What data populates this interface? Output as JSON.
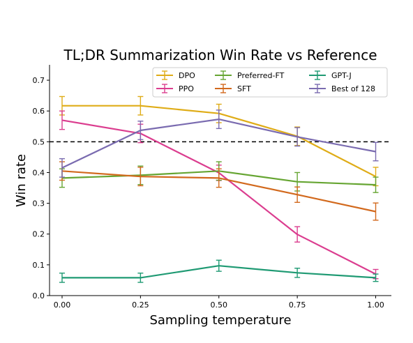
{
  "chart_data": {
    "type": "line",
    "title": "TL;DR Summarization Win Rate vs Reference",
    "xlabel": "Sampling temperature",
    "ylabel": "Win rate",
    "x": [
      0.0,
      0.25,
      0.5,
      0.75,
      1.0
    ],
    "x_tick_labels": [
      "0.00",
      "0.25",
      "0.50",
      "0.75",
      "1.00"
    ],
    "xlim": [
      -0.04,
      1.05
    ],
    "ylim": [
      0.0,
      0.75
    ],
    "y_ticks": [
      0.0,
      0.1,
      0.2,
      0.3,
      0.4,
      0.5,
      0.6,
      0.7
    ],
    "y_tick_labels": [
      "0.0",
      "0.1",
      "0.2",
      "0.3",
      "0.4",
      "0.5",
      "0.6",
      "0.7"
    ],
    "reference_line": {
      "y": 0.5,
      "style": "dashed",
      "color": "#000000"
    },
    "legend_position": "upper-right",
    "grid": false,
    "series": [
      {
        "name": "DPO",
        "color": "#dfac17",
        "values": [
          0.617,
          0.617,
          0.592,
          0.518,
          0.387
        ],
        "errors": [
          0.03,
          0.03,
          0.03,
          0.03,
          0.03
        ]
      },
      {
        "name": "PPO",
        "color": "#db3d8f",
        "values": [
          0.57,
          0.527,
          0.399,
          0.199,
          0.07
        ],
        "errors": [
          0.03,
          0.03,
          0.025,
          0.025,
          0.015
        ]
      },
      {
        "name": "Preferred-FT",
        "color": "#66a532",
        "values": [
          0.382,
          0.391,
          0.405,
          0.37,
          0.36
        ],
        "errors": [
          0.03,
          0.03,
          0.03,
          0.03,
          0.025
        ]
      },
      {
        "name": "SFT",
        "color": "#d2691d",
        "values": [
          0.405,
          0.387,
          0.382,
          0.328,
          0.273
        ],
        "errors": [
          0.03,
          0.03,
          0.03,
          0.025,
          0.028
        ]
      },
      {
        "name": "GPT-J",
        "color": "#1f9a73",
        "values": [
          0.058,
          0.058,
          0.097,
          0.074,
          0.058
        ],
        "errors": [
          0.015,
          0.015,
          0.018,
          0.015,
          0.012
        ]
      },
      {
        "name": "Best of 128",
        "color": "#7a6bb0",
        "values": [
          0.415,
          0.537,
          0.573,
          0.516,
          0.468
        ],
        "errors": [
          0.03,
          0.03,
          0.03,
          0.03,
          0.03
        ]
      }
    ]
  }
}
